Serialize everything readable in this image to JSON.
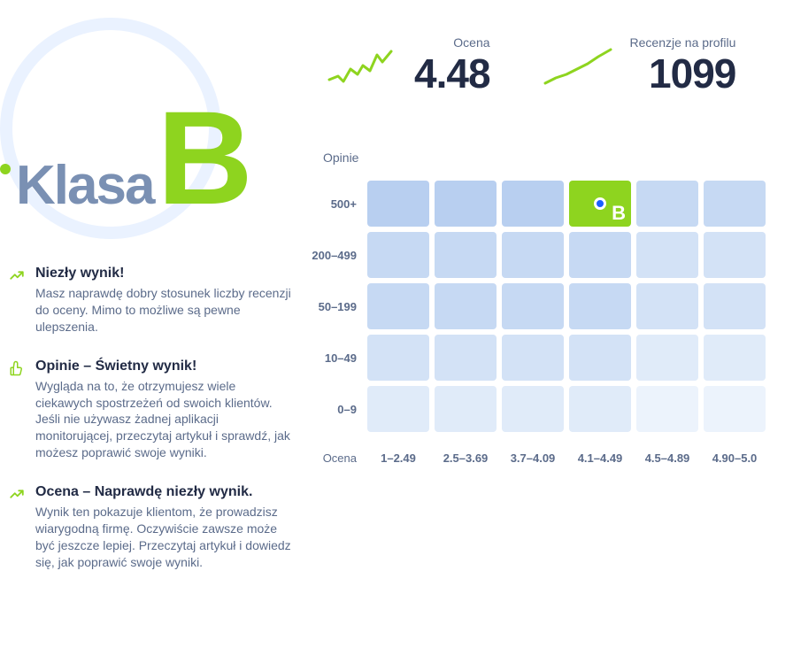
{
  "grade": {
    "word": "Klasa",
    "letter": "B",
    "word_color": "#7a90b3",
    "letter_color": "#8ed41f",
    "circle_color": "#eaf2ff",
    "dot_color": "#8ed41f"
  },
  "insights": [
    {
      "icon": "trend-up",
      "icon_color": "#8ed41f",
      "title": "Niezły wynik!",
      "text": "Masz naprawdę dobry stosunek liczby recenzji do oceny. Mimo to możliwe są pewne ulepszenia."
    },
    {
      "icon": "thumb-up",
      "icon_color": "#8ed41f",
      "title": "Opinie – Świetny wynik!",
      "text": "Wygląda na to, że otrzymujesz wiele ciekawych spostrzeżeń od swoich klientów. Jeśli nie używasz żadnej aplikacji monitorującej, przeczytaj artykuł i sprawdź, jak możesz poprawić swoje wyniki."
    },
    {
      "icon": "trend-up",
      "icon_color": "#8ed41f",
      "title": "Ocena – Naprawdę niezły wynik.",
      "text": "Wynik ten pokazuje klientom, że prowadzisz wiarygodną firmę. Oczywiście zawsze może być jeszcze lepiej. Przeczytaj artykuł i dowiedz się, jak poprawić swoje wyniki."
    }
  ],
  "stats": {
    "rating": {
      "label": "Ocena",
      "value": "4.48",
      "spark_color": "#8ed41f"
    },
    "reviews": {
      "label": "Recenzje na profilu",
      "value": "1099",
      "spark_color": "#8ed41f"
    }
  },
  "heatmap": {
    "title": "Opinie",
    "x_axis_label": "Ocena",
    "x_labels": [
      "1–2.49",
      "2.5–3.69",
      "3.7–4.09",
      "4.1–4.49",
      "4.5–4.89",
      "4.90–5.0"
    ],
    "y_labels": [
      "500+",
      "200–499",
      "50–199",
      "10–49",
      "0–9"
    ],
    "cell_colors": [
      [
        "#b8cff0",
        "#b8cff0",
        "#b8cff0",
        "#8ed41f",
        "#c6d9f3",
        "#c6d9f3"
      ],
      [
        "#c6d9f3",
        "#c6d9f3",
        "#c6d9f3",
        "#c6d9f3",
        "#d3e2f6",
        "#d3e2f6"
      ],
      [
        "#c6d9f3",
        "#c6d9f3",
        "#c6d9f3",
        "#c6d9f3",
        "#d3e2f6",
        "#d3e2f6"
      ],
      [
        "#d3e2f6",
        "#d3e2f6",
        "#d3e2f6",
        "#d3e2f6",
        "#e0ebf9",
        "#e0ebf9"
      ],
      [
        "#e0ebf9",
        "#e0ebf9",
        "#e0ebf9",
        "#e0ebf9",
        "#ecf3fc",
        "#ecf3fc"
      ]
    ],
    "highlight": {
      "row": 0,
      "col": 3,
      "letter": "B",
      "marker_color": "#1a5fff"
    }
  }
}
